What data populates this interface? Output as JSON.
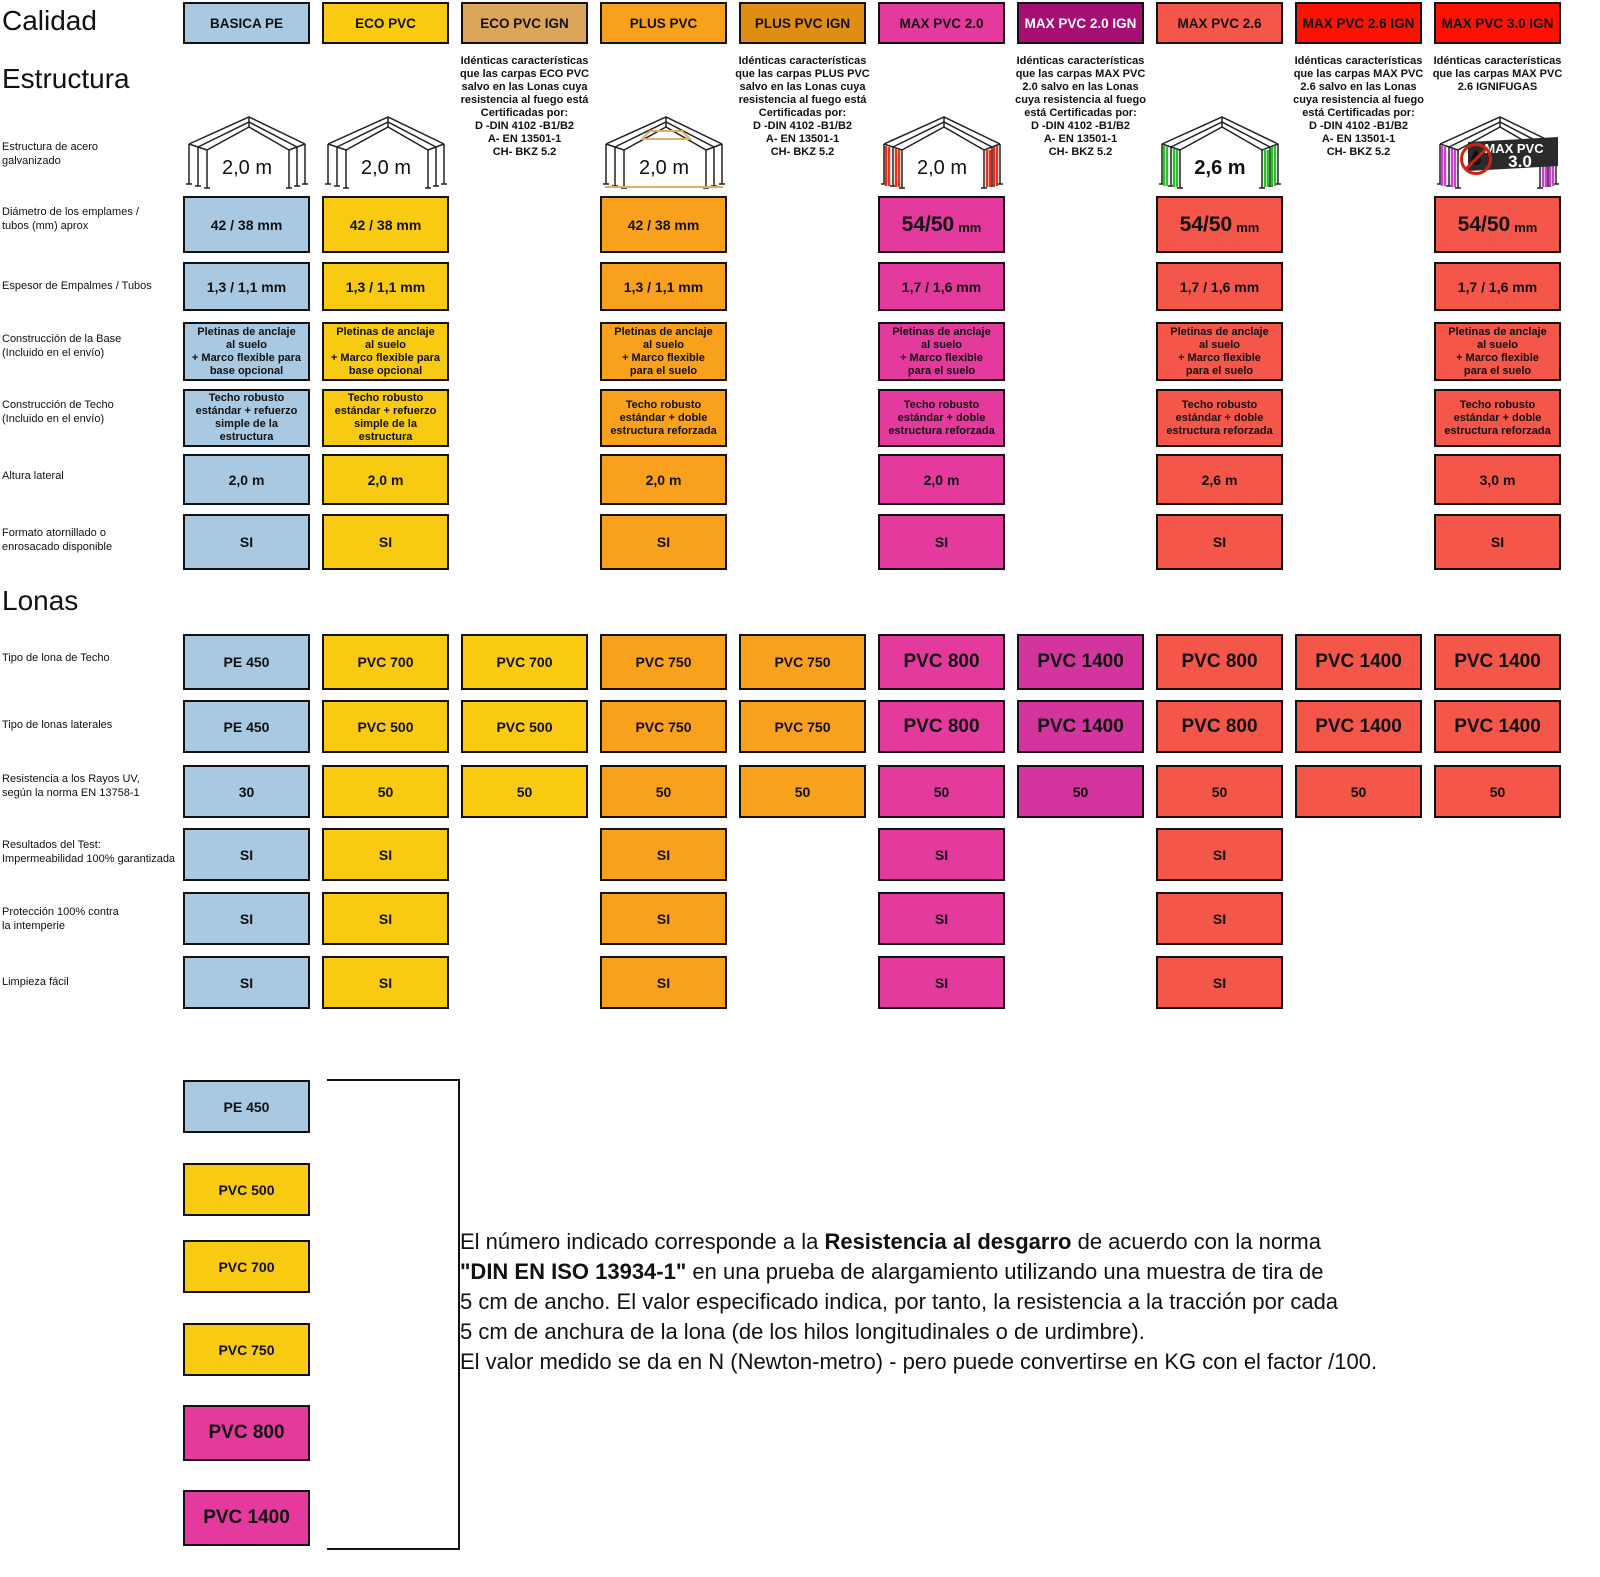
{
  "titles": {
    "calidad": "Calidad",
    "estructura": "Estructura",
    "lonas": "Lonas"
  },
  "chart_data": {
    "type": "table",
    "title": "Calidad",
    "columns": [
      "BASICA PE",
      "ECO PVC",
      "ECO PVC IGN",
      "PLUS PVC",
      "PLUS PVC IGN",
      "MAX PVC 2.0",
      "MAX PVC 2.0 IGN",
      "MAX PVC 2.6",
      "MAX PVC 2.6 IGN",
      "MAX PVC 3.0 IGN"
    ],
    "rows": [
      {
        "key": "estructura_acero",
        "label": "Estructura de acero\ngalvanizado",
        "values": [
          "2,0 m",
          "2,0 m",
          "",
          "2,0 m",
          "",
          "2,0 m",
          "",
          "2,6 m",
          "",
          "MAX PVC 3.0"
        ]
      },
      {
        "key": "diametro",
        "label": "Diámetro de los emplames /\ntubos (mm) aprox",
        "values": [
          "42 / 38 mm",
          "42 / 38 mm",
          "",
          "42 / 38 mm",
          "",
          "54/50 mm",
          "",
          "54/50 mm",
          "",
          "54/50 mm"
        ]
      },
      {
        "key": "espesor",
        "label": "Espesor de Empalmes / Tubos",
        "values": [
          "1,3 / 1,1 mm",
          "1,3 / 1,1 mm",
          "",
          "1,3 / 1,1 mm",
          "",
          "1,7 / 1,6 mm",
          "",
          "1,7 / 1,6 mm",
          "",
          "1,7 / 1,6 mm"
        ]
      },
      {
        "key": "base",
        "label": "Construcción de la Base\n(Incluido en el envío)",
        "values": [
          "Pletinas de anclaje\nal suelo\n+ Marco flexible para\nbase opcional",
          "Pletinas de anclaje\nal suelo\n+ Marco flexible para\nbase opcional",
          "",
          "Pletinas de anclaje\nal suelo\n+ Marco flexible\npara el suelo",
          "",
          "Pletinas de anclaje\nal suelo\n+ Marco flexible\npara el suelo",
          "",
          "Pletinas de anclaje\nal suelo\n+ Marco flexible\npara el suelo",
          "",
          "Pletinas de anclaje\nal suelo\n+ Marco flexible\npara el suelo"
        ]
      },
      {
        "key": "techo_construccion",
        "label": "Construcción de Techo\n(Incluido en el envío)",
        "values": [
          "Techo robusto\nestándar + refuerzo\nsimple de la\nestructura",
          "Techo robusto\nestándar + refuerzo\nsimple de la\nestructura",
          "",
          "Techo robusto\nestándar + doble\nestructura reforzada",
          "",
          "Techo robusto\nestándar + doble\nestructura reforzada",
          "",
          "Techo robusto\nestándar + doble\nestructura reforzada",
          "",
          "Techo robusto\nestándar + doble\nestructura reforzada"
        ]
      },
      {
        "key": "altura_lateral",
        "label": "Altura lateral",
        "values": [
          "2,0 m",
          "2,0 m",
          "",
          "2,0 m",
          "",
          "2,0 m",
          "",
          "2,6 m",
          "",
          "3,0 m"
        ]
      },
      {
        "key": "formato",
        "label": "Formato atornillado o\nenrosacado disponible",
        "values": [
          "SI",
          "SI",
          "",
          "SI",
          "",
          "SI",
          "",
          "SI",
          "",
          "SI"
        ]
      },
      {
        "key": "lona_techo",
        "label": "Tipo de lona de Techo",
        "values": [
          "PE 450",
          "PVC 700",
          "PVC 700",
          "PVC 750",
          "PVC 750",
          "PVC 800",
          "PVC 1400",
          "PVC 800",
          "PVC 1400",
          "PVC 1400"
        ]
      },
      {
        "key": "lona_laterales",
        "label": "Tipo de lonas laterales",
        "values": [
          "PE 450",
          "PVC 500",
          "PVC 500",
          "PVC 750",
          "PVC 750",
          "PVC 800",
          "PVC 1400",
          "PVC 800",
          "PVC 1400",
          "PVC 1400"
        ]
      },
      {
        "key": "resistencia_uv",
        "label": "Resistencia a los Rayos UV,\nsegún la norma EN 13758-1",
        "values": [
          "30",
          "50",
          "50",
          "50",
          "50",
          "50",
          "50",
          "50",
          "50",
          "50"
        ]
      },
      {
        "key": "impermeabilidad",
        "label": "Resultados del Test:\nImpermeabilidad 100% garantizada",
        "values": [
          "SI",
          "SI",
          "",
          "SI",
          "",
          "SI",
          "",
          "SI",
          "",
          ""
        ]
      },
      {
        "key": "proteccion",
        "label": "Protección 100% contra\nla intemperie",
        "values": [
          "SI",
          "SI",
          "",
          "SI",
          "",
          "SI",
          "",
          "SI",
          "",
          ""
        ]
      },
      {
        "key": "limpieza",
        "label": "Limpieza fácil",
        "values": [
          "SI",
          "SI",
          "",
          "SI",
          "",
          "SI",
          "",
          "SI",
          "",
          ""
        ]
      }
    ]
  },
  "columns": [
    {
      "slug": "basica-pe",
      "header_bg": "#A9C8E1",
      "header_fg": "#111111",
      "cell_bg": "#A9C8E1",
      "max_style": false,
      "tent": {
        "label": "2,0 m",
        "accent": "none",
        "bold_label": false
      },
      "note": ""
    },
    {
      "slug": "eco-pvc",
      "header_bg": "#F8CA12",
      "header_fg": "#111111",
      "cell_bg": "#F8CA12",
      "max_style": false,
      "tent": {
        "label": "2,0 m",
        "accent": "none",
        "bold_label": false
      },
      "note": ""
    },
    {
      "slug": "eco-pvc-ign",
      "header_bg": "#DCA65A",
      "header_fg": "#111111",
      "cell_bg": "#F8CA12",
      "max_style": false,
      "tent": null,
      "note": "Idénticas características\nque las carpas ECO PVC\nsalvo en las Lonas cuya\nresistencia al fuego está\nCertificadas por:\nD -DIN 4102 -B1/B2\nA- EN 13501-1\nCH- BKZ 5.2"
    },
    {
      "slug": "plus-pvc",
      "header_bg": "#F9A11C",
      "header_fg": "#111111",
      "cell_bg": "#F9A11C",
      "max_style": false,
      "tent": {
        "label": "2,0 m",
        "accent": "plus",
        "bold_label": false
      },
      "note": ""
    },
    {
      "slug": "plus-pvc-ign",
      "header_bg": "#E08D12",
      "header_fg": "#111111",
      "cell_bg": "#F9A11C",
      "max_style": false,
      "tent": null,
      "note": "Idénticas características\nque las carpas PLUS PVC\nsalvo en las Lonas cuya\nresistencia al fuego está\nCertificadas por:\nD -DIN 4102 -B1/B2\nA- EN 13501-1\nCH- BKZ 5.2"
    },
    {
      "slug": "max-pvc-20",
      "header_bg": "#E43A9D",
      "header_fg": "#111111",
      "cell_bg": "#E43A9D",
      "max_style": true,
      "tent": {
        "label": "2,0 m",
        "accent": "red",
        "bold_label": false
      },
      "note": ""
    },
    {
      "slug": "max-pvc-20-ign",
      "header_bg": "#A50E73",
      "header_fg": "#ffffff",
      "cell_bg": "#D4349E",
      "max_style": true,
      "tent": null,
      "note": "Idénticas características\nque las carpas MAX PVC\n2.0 salvo en las Lonas\ncuya resistencia al fuego\nestá Certificadas por:\nD -DIN 4102 -B1/B2\nA- EN 13501-1\nCH- BKZ 5.2"
    },
    {
      "slug": "max-pvc-26",
      "header_bg": "#F4564A",
      "header_fg": "#111111",
      "cell_bg": "#F4564A",
      "max_style": true,
      "tent": {
        "label": "2,6 m",
        "accent": "green",
        "bold_label": true
      },
      "note": ""
    },
    {
      "slug": "max-pvc-26-ign",
      "header_bg": "#FB1203",
      "header_fg": "#111111",
      "cell_bg": "#F4564A",
      "max_style": true,
      "tent": null,
      "note": "Idénticas características\nque las carpas MAX PVC\n2.6 salvo en las Lonas\ncuya resistencia al fuego\nestá Certificadas por:\nD -DIN 4102 -B1/B2\nA- EN 13501-1\nCH- BKZ 5.2"
    },
    {
      "slug": "max-pvc-30-ign",
      "header_bg": "#FB1203",
      "header_fg": "#111111",
      "cell_bg": "#F4564A",
      "max_style": true,
      "tent": {
        "label": "",
        "accent": "fire30",
        "bold_label": false,
        "badge_line1": "MAX PVC",
        "badge_line2": "3.0"
      },
      "note": "Idénticas características\nque las carpas MAX PVC\n2.6 IGNIFUGAS"
    }
  ],
  "legend": {
    "items": [
      {
        "label": "PE 450",
        "bg": "#A9C8E1",
        "big": false
      },
      {
        "label": "PVC 500",
        "bg": "#F8CA12",
        "big": false
      },
      {
        "label": "PVC 700",
        "bg": "#F8CA12",
        "big": false
      },
      {
        "label": "PVC 750",
        "bg": "#F8CA12",
        "big": false
      },
      {
        "label": "PVC 800",
        "bg": "#E43A9D",
        "big": true
      },
      {
        "label": "PVC 1400",
        "bg": "#E43A9D",
        "big": true
      }
    ]
  },
  "footnote": {
    "lines": [
      [
        {
          "t": "El número indicado corresponde a la ",
          "b": false
        },
        {
          "t": "Resistencia al desgarro",
          "b": true
        },
        {
          "t": " de acuerdo con la norma",
          "b": false
        }
      ],
      [
        {
          "t": "\"DIN EN ISO 13934-1\"",
          "b": true
        },
        {
          "t": " en una prueba de alargamiento utilizando una muestra de tira de",
          "b": false
        }
      ],
      [
        {
          "t": "5 cm de ancho. El valor especificado indica, por tanto, la resistencia a la tracción por cada",
          "b": false
        }
      ],
      [
        {
          "t": "5 cm de  anchura de la lona (de los hilos longitudinales o de urdimbre).",
          "b": false
        }
      ],
      [
        {
          "t": "El valor medido se da en N (Newton-metro) - pero puede convertirse en KG con el factor /100.",
          "b": false
        }
      ]
    ]
  }
}
